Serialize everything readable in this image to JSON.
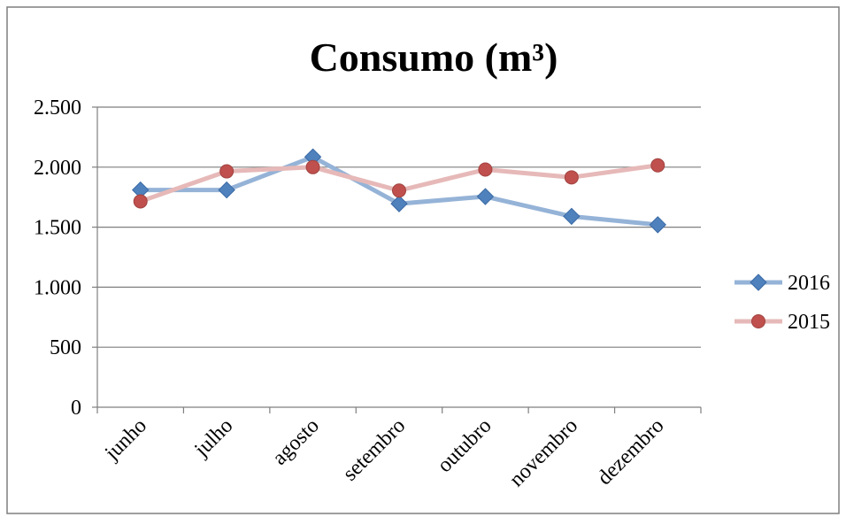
{
  "chart_data": {
    "type": "line",
    "title": "Consumo (m³)",
    "categories": [
      "junho",
      "julho",
      "agosto",
      "setembro",
      "outubro",
      "novembro",
      "dezembro"
    ],
    "series": [
      {
        "name": "2016",
        "values": [
          1810,
          1810,
          2085,
          1695,
          1755,
          1590,
          1520
        ],
        "color": "#4F81BD",
        "line_color": "#95B3D7",
        "marker": "diamond"
      },
      {
        "name": "2015",
        "values": [
          1715,
          1965,
          2000,
          1805,
          1980,
          1915,
          2015
        ],
        "color": "#C0504D",
        "line_color": "#E6B9B8",
        "marker": "circle"
      }
    ],
    "ylim": [
      0,
      2500
    ],
    "yticks": [
      0,
      500,
      1000,
      1500,
      2000,
      2500
    ],
    "ytick_labels": [
      "0",
      "500",
      "1.000",
      "1.500",
      "2.000",
      "2.500"
    ],
    "grid": true,
    "legend": "right",
    "colors": {
      "gridline": "#7F7F7F",
      "axis": "#7F7F7F",
      "frame": "#7F7F7F",
      "text": "#000000"
    }
  }
}
